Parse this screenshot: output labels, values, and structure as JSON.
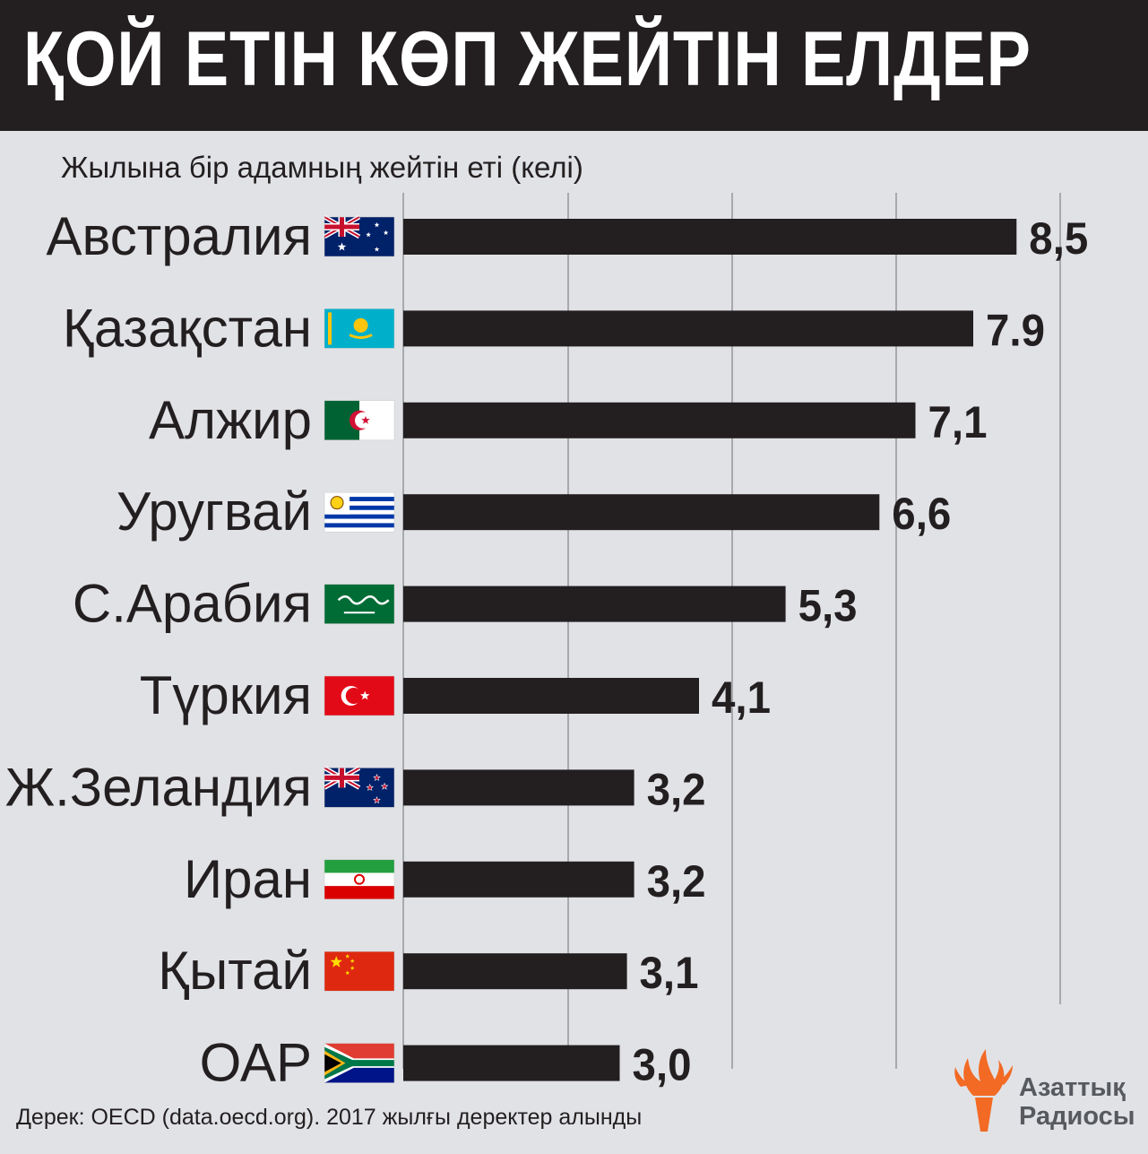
{
  "header": {
    "title": "ҚОЙ ЕТІН КӨП ЖЕЙТІН ЕЛДЕР"
  },
  "footer": {
    "source": "Дерек: OECD (data.oecd.org). 2017 жылғы деректер алынды"
  },
  "logo": {
    "line1": "Азаттық",
    "line2": "Радиосы",
    "color": "#f26a24"
  },
  "colors": {
    "bar": "#231f20",
    "background": "#e1e2e6",
    "header": "#231f20",
    "grid": "#a7a9ac"
  },
  "chart_data": {
    "type": "bar",
    "orientation": "horizontal",
    "subtitle": "Жылына бір адамның жейтін еті (келі)",
    "categories": [
      "Австралия",
      "Қазақстан",
      "Алжир",
      "Уругвай",
      "С.Арабия",
      "Түркия",
      "Ж.Зеландия",
      "Иран",
      "Қытай",
      "ОАР"
    ],
    "values": [
      8.5,
      7.9,
      7.1,
      6.6,
      5.3,
      4.1,
      3.2,
      3.2,
      3.1,
      3.0
    ],
    "value_labels": [
      "8,5",
      "7.9",
      "7,1",
      "6,6",
      "5,3",
      "4,1",
      "3,2",
      "3,2",
      "3,1",
      "3,0"
    ],
    "flags": [
      "australia-flag",
      "kazakhstan-flag",
      "algeria-flag",
      "uruguay-flag",
      "saudi-arabia-flag",
      "turkey-flag",
      "new-zealand-flag",
      "iran-flag",
      "china-flag",
      "south-africa-flag"
    ],
    "grid": true,
    "axis_labels_visible": false
  }
}
